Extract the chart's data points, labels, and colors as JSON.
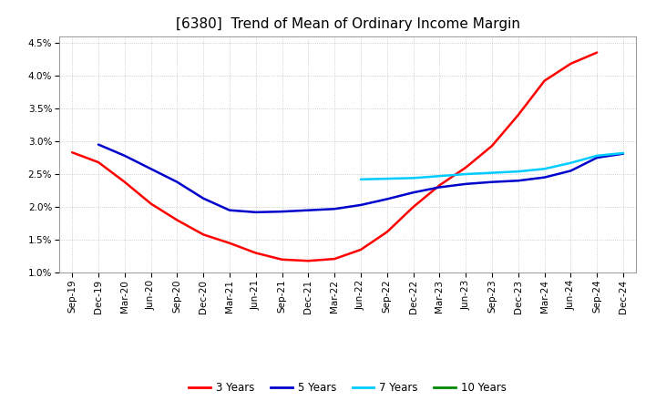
{
  "title": "[6380]  Trend of Mean of Ordinary Income Margin",
  "background_color": "#ffffff",
  "plot_background_color": "#ffffff",
  "grid_color": "#b0b0b0",
  "ylim": [
    0.01,
    0.046
  ],
  "yticks": [
    0.01,
    0.015,
    0.02,
    0.025,
    0.03,
    0.035,
    0.04,
    0.045
  ],
  "x_labels": [
    "Sep-19",
    "Dec-19",
    "Mar-20",
    "Jun-20",
    "Sep-20",
    "Dec-20",
    "Mar-21",
    "Jun-21",
    "Sep-21",
    "Dec-21",
    "Mar-22",
    "Jun-22",
    "Sep-22",
    "Dec-22",
    "Mar-23",
    "Jun-23",
    "Sep-23",
    "Dec-23",
    "Mar-24",
    "Jun-24",
    "Sep-24",
    "Dec-24"
  ],
  "series_3y": {
    "color": "#ff0000",
    "values": [
      0.0283,
      0.0268,
      0.0238,
      0.0205,
      0.018,
      0.0158,
      0.0145,
      0.013,
      0.012,
      0.0118,
      0.0121,
      0.0135,
      0.0162,
      0.02,
      0.0233,
      0.026,
      0.0293,
      0.034,
      0.0392,
      0.0418,
      0.0435,
      null
    ],
    "label": "3 Years"
  },
  "series_5y": {
    "color": "#0000cc",
    "values": [
      null,
      0.0295,
      0.0278,
      0.0258,
      0.0238,
      0.0213,
      0.0195,
      0.0192,
      0.0193,
      0.0195,
      0.0197,
      0.0203,
      0.0212,
      0.0222,
      0.023,
      0.0235,
      0.0238,
      0.024,
      0.0245,
      0.0255,
      0.0275,
      0.0281
    ],
    "label": "5 Years"
  },
  "series_7y": {
    "color": "#00ccff",
    "values": [
      null,
      null,
      null,
      null,
      null,
      null,
      null,
      null,
      null,
      null,
      null,
      0.0242,
      0.0243,
      0.0244,
      0.0247,
      0.025,
      0.0252,
      0.0254,
      0.0258,
      0.0267,
      0.0278,
      0.0282
    ],
    "label": "7 Years"
  },
  "series_10y": {
    "color": "#008800",
    "values": [
      null,
      null,
      null,
      null,
      null,
      null,
      null,
      null,
      null,
      null,
      null,
      null,
      null,
      null,
      null,
      null,
      null,
      null,
      null,
      null,
      null,
      null
    ],
    "label": "10 Years"
  },
  "legend_entries": [
    "3 Years",
    "5 Years",
    "7 Years",
    "10 Years"
  ],
  "legend_colors": [
    "#ff0000",
    "#0000cc",
    "#00ccff",
    "#008800"
  ],
  "title_fontsize": 11,
  "tick_fontsize": 7.5,
  "legend_fontsize": 8.5,
  "linewidth": 1.8
}
